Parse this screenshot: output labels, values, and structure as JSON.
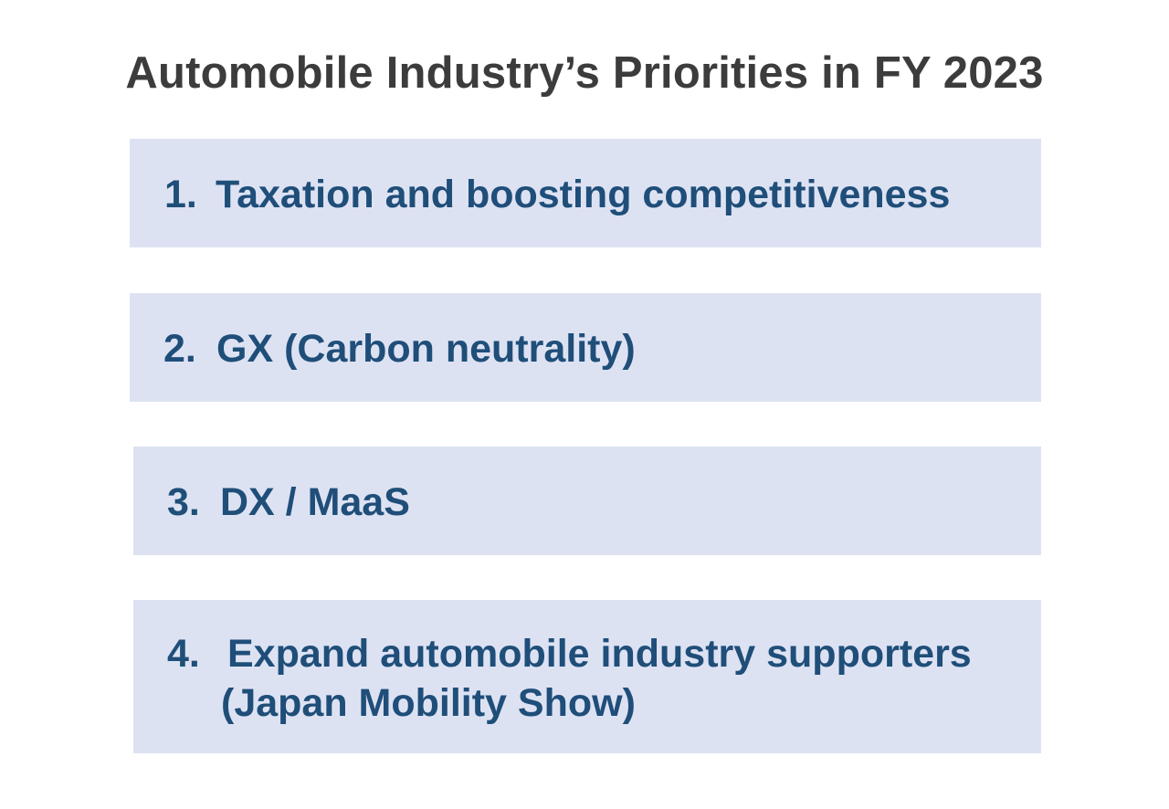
{
  "title": "Automobile Industry’s Priorities in FY 2023",
  "items": [
    {
      "number": "1.",
      "lines": [
        "Taxation and boosting competitiveness"
      ]
    },
    {
      "number": "2.",
      "lines": [
        "GX (Carbon neutrality)"
      ]
    },
    {
      "number": "3.",
      "lines": [
        "DX / MaaS"
      ]
    },
    {
      "number": "4.",
      "lines": [
        "Expand automobile industry supporters",
        "(Japan Mobility Show)"
      ]
    }
  ],
  "colors": {
    "title_text": "#3c3c3c",
    "box_background": "#dde2f3",
    "item_text": "#1f4e79",
    "page_background": "#ffffff"
  }
}
